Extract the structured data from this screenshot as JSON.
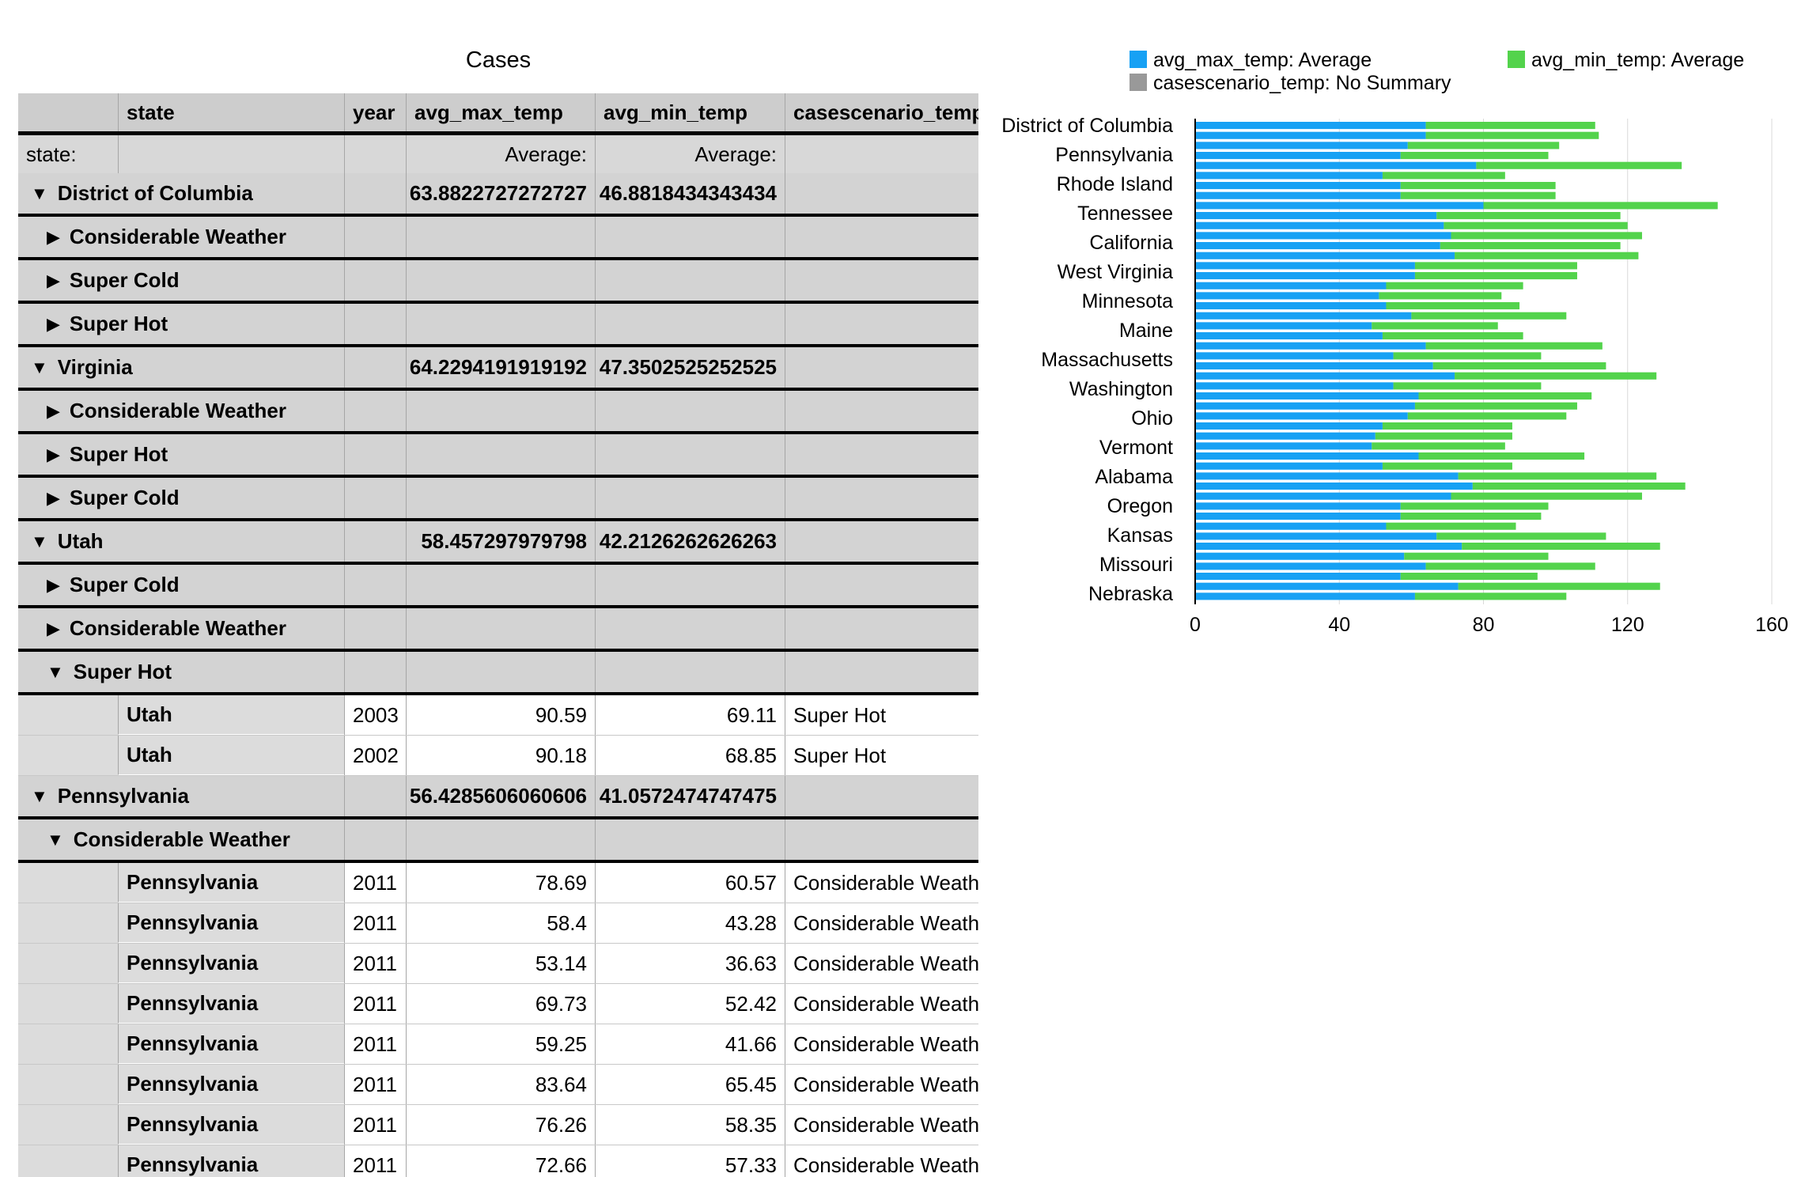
{
  "table": {
    "title": "Cases",
    "columns": [
      "",
      "state",
      "year",
      "avg_max_temp",
      "avg_min_temp",
      "casescenario_temp"
    ],
    "summary_row": {
      "label": "state:",
      "avg_max": "Average:",
      "avg_min": "Average:"
    },
    "rows": [
      {
        "kind": "state",
        "open": true,
        "label": "District of Columbia",
        "avg_max": "63.8822727272727",
        "avg_min": "46.8818434343434"
      },
      {
        "kind": "scenario",
        "open": false,
        "label": "Considerable Weather"
      },
      {
        "kind": "scenario",
        "open": false,
        "label": "Super Cold"
      },
      {
        "kind": "scenario",
        "open": false,
        "label": "Super Hot"
      },
      {
        "kind": "state",
        "open": true,
        "label": "Virginia",
        "avg_max": "64.2294191919192",
        "avg_min": "47.3502525252525"
      },
      {
        "kind": "scenario",
        "open": false,
        "label": "Considerable Weather"
      },
      {
        "kind": "scenario",
        "open": false,
        "label": "Super Hot"
      },
      {
        "kind": "scenario",
        "open": false,
        "label": "Super Cold"
      },
      {
        "kind": "state",
        "open": true,
        "label": "Utah",
        "avg_max": "58.457297979798",
        "avg_min": "42.2126262626263"
      },
      {
        "kind": "scenario",
        "open": false,
        "label": "Super Cold"
      },
      {
        "kind": "scenario",
        "open": false,
        "label": "Considerable Weather"
      },
      {
        "kind": "scenario",
        "open": true,
        "label": "Super Hot"
      },
      {
        "kind": "data",
        "state": "Utah",
        "year": "2003",
        "avg_max": "90.59",
        "avg_min": "69.11",
        "scenario": "Super Hot"
      },
      {
        "kind": "data",
        "state": "Utah",
        "year": "2002",
        "avg_max": "90.18",
        "avg_min": "68.85",
        "scenario": "Super Hot"
      },
      {
        "kind": "state",
        "open": true,
        "label": "Pennsylvania",
        "avg_max": "56.4285606060606",
        "avg_min": "41.0572474747475"
      },
      {
        "kind": "scenario",
        "open": true,
        "label": "Considerable Weather"
      },
      {
        "kind": "data",
        "state": "Pennsylvania",
        "year": "2011",
        "avg_max": "78.69",
        "avg_min": "60.57",
        "scenario": "Considerable Weather"
      },
      {
        "kind": "data",
        "state": "Pennsylvania",
        "year": "2011",
        "avg_max": "58.4",
        "avg_min": "43.28",
        "scenario": "Considerable Weather"
      },
      {
        "kind": "data",
        "state": "Pennsylvania",
        "year": "2011",
        "avg_max": "53.14",
        "avg_min": "36.63",
        "scenario": "Considerable Weather"
      },
      {
        "kind": "data",
        "state": "Pennsylvania",
        "year": "2011",
        "avg_max": "69.73",
        "avg_min": "52.42",
        "scenario": "Considerable Weather"
      },
      {
        "kind": "data",
        "state": "Pennsylvania",
        "year": "2011",
        "avg_max": "59.25",
        "avg_min": "41.66",
        "scenario": "Considerable Weather"
      },
      {
        "kind": "data",
        "state": "Pennsylvania",
        "year": "2011",
        "avg_max": "83.64",
        "avg_min": "65.45",
        "scenario": "Considerable Weather"
      },
      {
        "kind": "data",
        "state": "Pennsylvania",
        "year": "2011",
        "avg_max": "76.26",
        "avg_min": "58.35",
        "scenario": "Considerable Weather"
      },
      {
        "kind": "data",
        "state": "Pennsylvania",
        "year": "2011",
        "avg_max": "72.66",
        "avg_min": "57.33",
        "scenario": "Considerable Weather"
      },
      {
        "kind": "data",
        "state": "",
        "year": "",
        "avg_max": "",
        "avg_min": "",
        "scenario": ""
      }
    ]
  },
  "chart_data": {
    "type": "bar",
    "orientation": "horizontal",
    "stacked": true,
    "legend": [
      {
        "name": "avg_max_temp: Average",
        "color": "#17a1f4"
      },
      {
        "name": "avg_min_temp: Average",
        "color": "#53d34c"
      },
      {
        "name": "casescenario_temp: No Summary",
        "color": "#999999"
      }
    ],
    "legend_position": "top",
    "category_labels": [
      "District of Columbia",
      "Pennsylvania",
      "Rhode Island",
      "Tennessee",
      "California",
      "West Virginia",
      "Minnesota",
      "Maine",
      "Massachusetts",
      "Washington",
      "Ohio",
      "Vermont",
      "Alabama",
      "Oregon",
      "Kansas",
      "Missouri",
      "Nebraska"
    ],
    "xlim": [
      0,
      160
    ],
    "xticks": [
      "0",
      "40",
      "80",
      "120",
      "160"
    ],
    "grid": true,
    "series": [
      {
        "name": "avg_max_temp: Average",
        "values": [
          64,
          64,
          59,
          57,
          78,
          52,
          57,
          57,
          80,
          67,
          69,
          71,
          68,
          72,
          61,
          61,
          53,
          51,
          53,
          60,
          49,
          52,
          64,
          55,
          66,
          72,
          55,
          62,
          61,
          59,
          52,
          50,
          49,
          62,
          52,
          73,
          77,
          71,
          57,
          57,
          53,
          67,
          74,
          58,
          64,
          57,
          73,
          61
        ]
      },
      {
        "name": "avg_min_temp: Average",
        "values": [
          47,
          48,
          42,
          41,
          57,
          34,
          43,
          43,
          65,
          51,
          51,
          53,
          50,
          51,
          45,
          45,
          38,
          34,
          37,
          43,
          35,
          39,
          49,
          41,
          48,
          56,
          41,
          48,
          45,
          44,
          36,
          38,
          37,
          46,
          36,
          55,
          59,
          53,
          41,
          39,
          36,
          47,
          55,
          40,
          47,
          38,
          56,
          42
        ]
      }
    ]
  }
}
